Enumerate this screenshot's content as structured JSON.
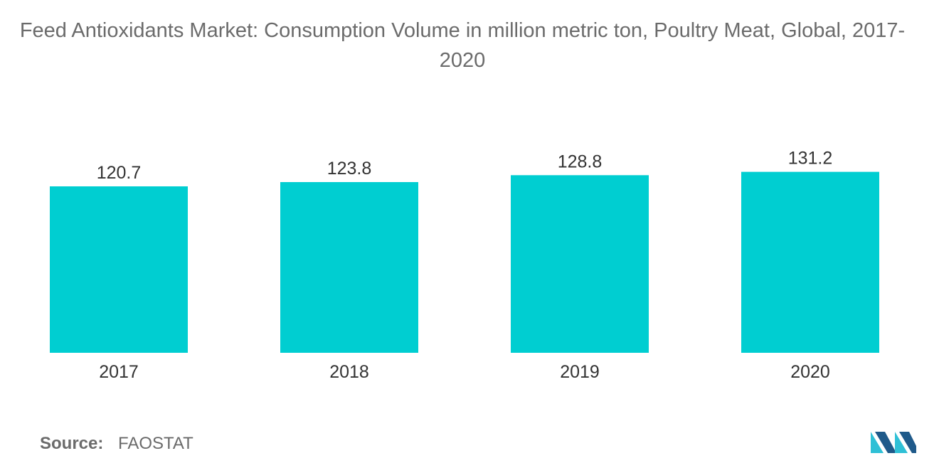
{
  "title": "Feed Antioxidants Market: Consumption Volume in million metric ton, Poultry Meat, Global, 2017-2020",
  "source": {
    "label": "Source:",
    "value": "FAOSTAT"
  },
  "colors": {
    "bar": "#00CED1",
    "text": "#333333",
    "muted_text": "#6b6b6b",
    "logo_dark": "#1f5a8a",
    "logo_light": "#2fc0d6"
  },
  "logo": {
    "icon": "mordor-intelligence-logo-icon"
  },
  "chart_data": {
    "type": "bar",
    "categories": [
      "2017",
      "2018",
      "2019",
      "2020"
    ],
    "values": [
      120.7,
      123.8,
      128.8,
      131.2
    ],
    "data_labels": [
      "120.7",
      "123.8",
      "128.8",
      "131.2"
    ],
    "title": "Feed Antioxidants Market: Consumption Volume in million metric ton, Poultry Meat, Global, 2017-2020",
    "xlabel": "",
    "ylabel": "",
    "ylim": [
      0,
      140
    ],
    "grid": false,
    "legend": "none"
  }
}
